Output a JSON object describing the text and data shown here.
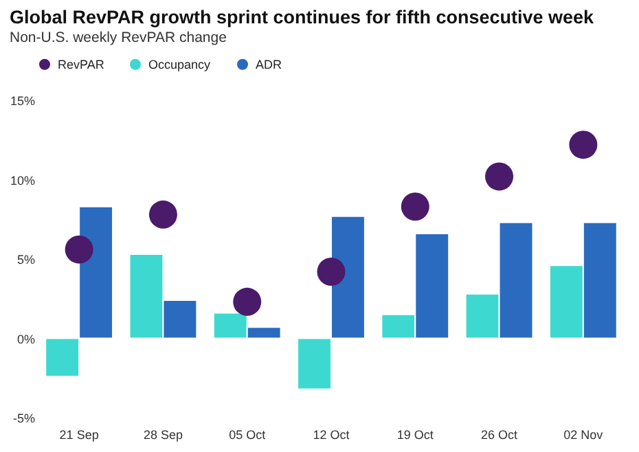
{
  "chart_data": {
    "type": "bar",
    "title": "Global RevPAR growth sprint continues for fifth consecutive week",
    "subtitle": "Non-U.S. weekly RevPAR change",
    "categories": [
      "21 Sep",
      "28 Sep",
      "05 Oct",
      "12 Oct",
      "19 Oct",
      "26 Oct",
      "02 Nov"
    ],
    "series": [
      {
        "name": "RevPAR",
        "type": "scatter",
        "marker": "circle",
        "color": "#4a1a6b",
        "values": [
          5.6,
          7.8,
          2.3,
          4.2,
          8.3,
          10.2,
          12.2
        ]
      },
      {
        "name": "Occupancy",
        "color": "#3dd9d0",
        "values": [
          -2.4,
          5.3,
          1.6,
          -3.2,
          1.5,
          2.8,
          4.6
        ]
      },
      {
        "name": "ADR",
        "color": "#2a6bbf",
        "values": [
          8.3,
          2.4,
          0.7,
          7.7,
          6.6,
          7.3,
          7.3
        ]
      }
    ],
    "ylim": [
      -5,
      15
    ],
    "yticks": [
      {
        "value": -5,
        "label": "-5%"
      },
      {
        "value": 0,
        "label": "0%"
      },
      {
        "value": 5,
        "label": "5%"
      },
      {
        "value": 10,
        "label": "10%"
      },
      {
        "value": 15,
        "label": "15%"
      }
    ],
    "grid": false,
    "legend": "top left"
  }
}
